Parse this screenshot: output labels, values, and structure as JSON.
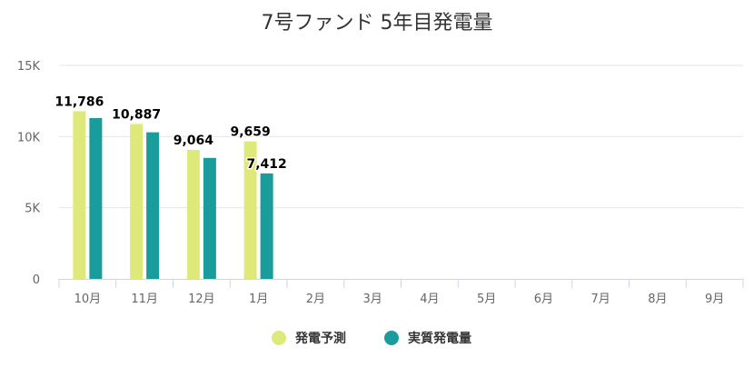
{
  "chart_data": {
    "type": "bar",
    "title": "7号ファンド 5年目発電量",
    "categories": [
      "10月",
      "11月",
      "12月",
      "1月",
      "2月",
      "3月",
      "4月",
      "5月",
      "6月",
      "7月",
      "8月",
      "9月"
    ],
    "y_ticks": [
      "0",
      "5K",
      "10K",
      "15K"
    ],
    "ylim": [
      0,
      15000
    ],
    "grid": true,
    "legend_position": "bottom-center",
    "series": [
      {
        "name": "発電予測",
        "color": "#dfe97a",
        "values": [
          11786,
          10887,
          9064,
          9659,
          null,
          null,
          null,
          null,
          null,
          null,
          null,
          null
        ],
        "labels": [
          "11,786",
          "10,887",
          "9,064",
          "9,659"
        ]
      },
      {
        "name": "実質発電量",
        "color": "#1a9c9c",
        "values": [
          11300,
          10300,
          8500,
          7412,
          null,
          null,
          null,
          null,
          null,
          null,
          null,
          null
        ],
        "labels": [
          "",
          "",
          "",
          "7,412"
        ]
      }
    ]
  }
}
